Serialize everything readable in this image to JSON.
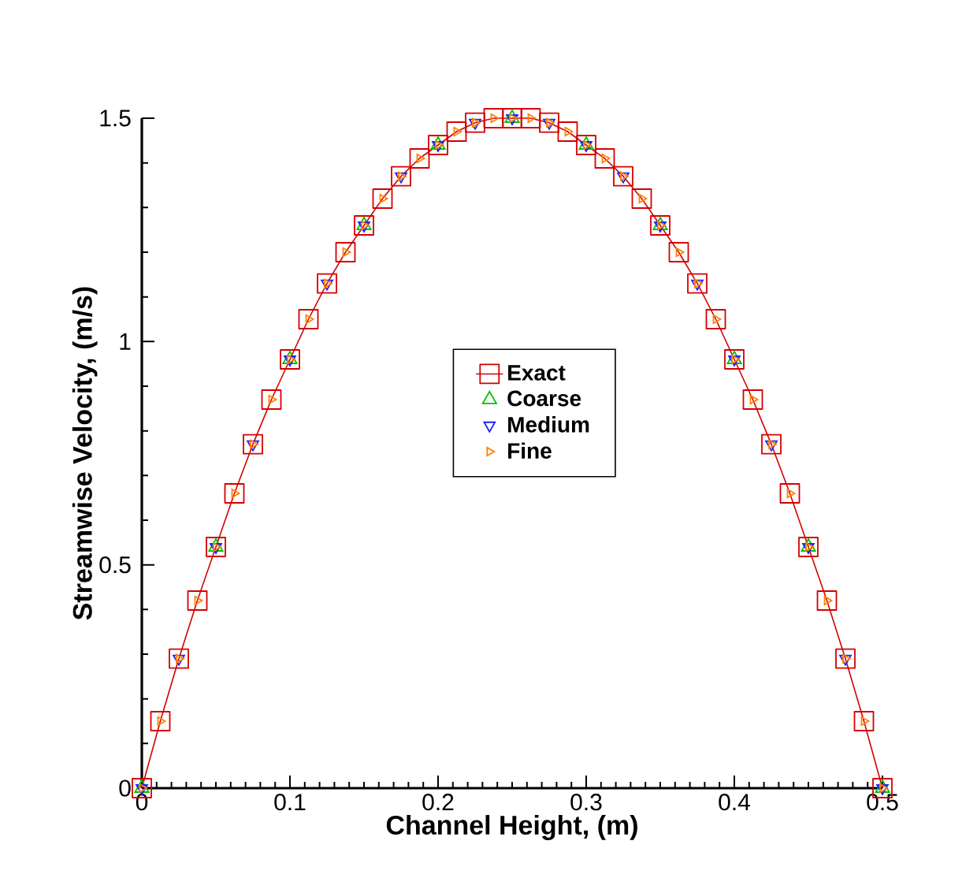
{
  "chart_data": {
    "type": "line",
    "xlabel": "Channel Height, (m)",
    "ylabel": "Streamwise Velocity, (m/s)",
    "xlim": [
      0,
      0.5
    ],
    "ylim": [
      0,
      1.5
    ],
    "xticks": [
      0,
      0.1,
      0.2,
      0.3,
      0.4,
      0.5
    ],
    "yticks": [
      0,
      0.5,
      1,
      1.5
    ],
    "legend": "center",
    "grid": false,
    "series": [
      {
        "name": "Exact",
        "type": "line",
        "marker": "square",
        "color": "#d40000",
        "x": [
          0,
          0.0125,
          0.025,
          0.0375,
          0.05,
          0.0625,
          0.075,
          0.0875,
          0.1,
          0.1125,
          0.125,
          0.1375,
          0.15,
          0.1625,
          0.175,
          0.1875,
          0.2,
          0.2125,
          0.225,
          0.2375,
          0.25,
          0.2625,
          0.275,
          0.2875,
          0.3,
          0.3125,
          0.325,
          0.3375,
          0.35,
          0.3625,
          0.375,
          0.3875,
          0.4,
          0.4125,
          0.425,
          0.4375,
          0.45,
          0.4625,
          0.475,
          0.4875,
          0.5
        ],
        "values": [
          0,
          0.15,
          0.29,
          0.42,
          0.54,
          0.66,
          0.77,
          0.87,
          0.96,
          1.05,
          1.13,
          1.2,
          1.26,
          1.32,
          1.37,
          1.41,
          1.44,
          1.47,
          1.49,
          1.5,
          1.5,
          1.5,
          1.49,
          1.47,
          1.44,
          1.41,
          1.37,
          1.32,
          1.26,
          1.2,
          1.13,
          1.05,
          0.96,
          0.87,
          0.77,
          0.66,
          0.54,
          0.42,
          0.29,
          0.15,
          0
        ]
      },
      {
        "name": "Coarse",
        "type": "scatter",
        "marker": "triangle",
        "color": "#00c000",
        "x": [
          0,
          0.05,
          0.1,
          0.15,
          0.2,
          0.25,
          0.3,
          0.35,
          0.4,
          0.45,
          0.5
        ],
        "values": [
          0,
          0.54,
          0.96,
          1.26,
          1.44,
          1.5,
          1.44,
          1.26,
          0.96,
          0.54,
          0
        ]
      },
      {
        "name": "Medium",
        "type": "scatter",
        "marker": "triangle-down",
        "color": "#2020ff",
        "x": [
          0,
          0.025,
          0.05,
          0.075,
          0.1,
          0.125,
          0.15,
          0.175,
          0.2,
          0.225,
          0.25,
          0.275,
          0.3,
          0.325,
          0.35,
          0.375,
          0.4,
          0.425,
          0.45,
          0.475,
          0.5
        ],
        "values": [
          0,
          0.29,
          0.54,
          0.77,
          0.96,
          1.13,
          1.26,
          1.37,
          1.44,
          1.49,
          1.5,
          1.49,
          1.44,
          1.37,
          1.26,
          1.13,
          0.96,
          0.77,
          0.54,
          0.29,
          0
        ]
      },
      {
        "name": "Fine",
        "type": "scatter",
        "marker": "triangle-right",
        "color": "#ff8000",
        "x": [
          0,
          0.0125,
          0.025,
          0.0375,
          0.05,
          0.0625,
          0.075,
          0.0875,
          0.1,
          0.1125,
          0.125,
          0.1375,
          0.15,
          0.1625,
          0.175,
          0.1875,
          0.2,
          0.2125,
          0.225,
          0.2375,
          0.25,
          0.2625,
          0.275,
          0.2875,
          0.3,
          0.3125,
          0.325,
          0.3375,
          0.35,
          0.3625,
          0.375,
          0.3875,
          0.4,
          0.4125,
          0.425,
          0.4375,
          0.45,
          0.4625,
          0.475,
          0.4875,
          0.5
        ],
        "values": [
          0,
          0.15,
          0.29,
          0.42,
          0.54,
          0.66,
          0.77,
          0.87,
          0.96,
          1.05,
          1.13,
          1.2,
          1.26,
          1.32,
          1.37,
          1.41,
          1.44,
          1.47,
          1.49,
          1.5,
          1.5,
          1.5,
          1.49,
          1.47,
          1.44,
          1.41,
          1.37,
          1.32,
          1.26,
          1.2,
          1.13,
          1.05,
          0.96,
          0.87,
          0.77,
          0.66,
          0.54,
          0.42,
          0.29,
          0.15,
          0
        ]
      }
    ]
  }
}
